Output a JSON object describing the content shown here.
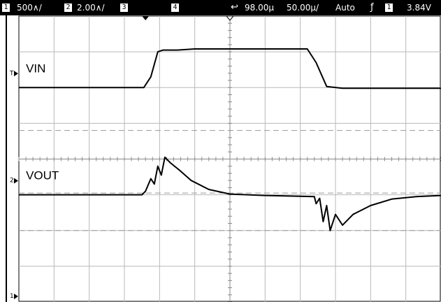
{
  "status_bar": {
    "ch1_num": "1",
    "ch1_scale": "500∧/",
    "ch2_num": "2",
    "ch2_scale": "2.00∧/",
    "ch3_num": "3",
    "ch4_num": "4",
    "time_delay": "98.00µ",
    "time_scale": "50.00µ/",
    "trigger_mode": "Auto",
    "trigger_source": "1",
    "trigger_level": "3.84V"
  },
  "chart_data": {
    "type": "line",
    "instrument": "oscilloscope",
    "x": {
      "divisions": 12,
      "per_div": "50.00µ"
    },
    "y": {
      "divisions": 8
    },
    "grid": true,
    "series": [
      {
        "name": "VIN",
        "ground_marker": "T",
        "points": [
          [
            0,
            2.0
          ],
          [
            3.55,
            2.0
          ],
          [
            3.75,
            1.7
          ],
          [
            3.95,
            1.0
          ],
          [
            4.1,
            0.95
          ],
          [
            4.5,
            0.95
          ],
          [
            5.0,
            0.92
          ],
          [
            8.2,
            0.92
          ],
          [
            8.45,
            1.3
          ],
          [
            8.75,
            1.97
          ],
          [
            9.2,
            2.02
          ],
          [
            12,
            2.02
          ]
        ]
      },
      {
        "name": "VOUT",
        "ground_marker": "2",
        "baseline": 5.0,
        "points": [
          [
            0,
            5.0
          ],
          [
            3.5,
            5.0
          ],
          [
            3.6,
            4.9
          ],
          [
            3.75,
            4.55
          ],
          [
            3.85,
            4.7
          ],
          [
            3.95,
            4.2
          ],
          [
            4.05,
            4.45
          ],
          [
            4.15,
            3.95
          ],
          [
            4.3,
            4.1
          ],
          [
            4.55,
            4.3
          ],
          [
            4.9,
            4.6
          ],
          [
            5.4,
            4.85
          ],
          [
            6.0,
            4.98
          ],
          [
            7.0,
            5.02
          ],
          [
            8.4,
            5.05
          ],
          [
            8.45,
            5.25
          ],
          [
            8.55,
            5.1
          ],
          [
            8.65,
            5.75
          ],
          [
            8.75,
            5.3
          ],
          [
            8.85,
            6.0
          ],
          [
            9.0,
            5.55
          ],
          [
            9.2,
            5.85
          ],
          [
            9.5,
            5.55
          ],
          [
            10.0,
            5.3
          ],
          [
            10.6,
            5.12
          ],
          [
            11.3,
            5.05
          ],
          [
            12,
            5.02
          ]
        ]
      }
    ],
    "reference_lines": [
      3.2,
      4.95,
      6.0
    ],
    "markers": [
      "1"
    ]
  }
}
